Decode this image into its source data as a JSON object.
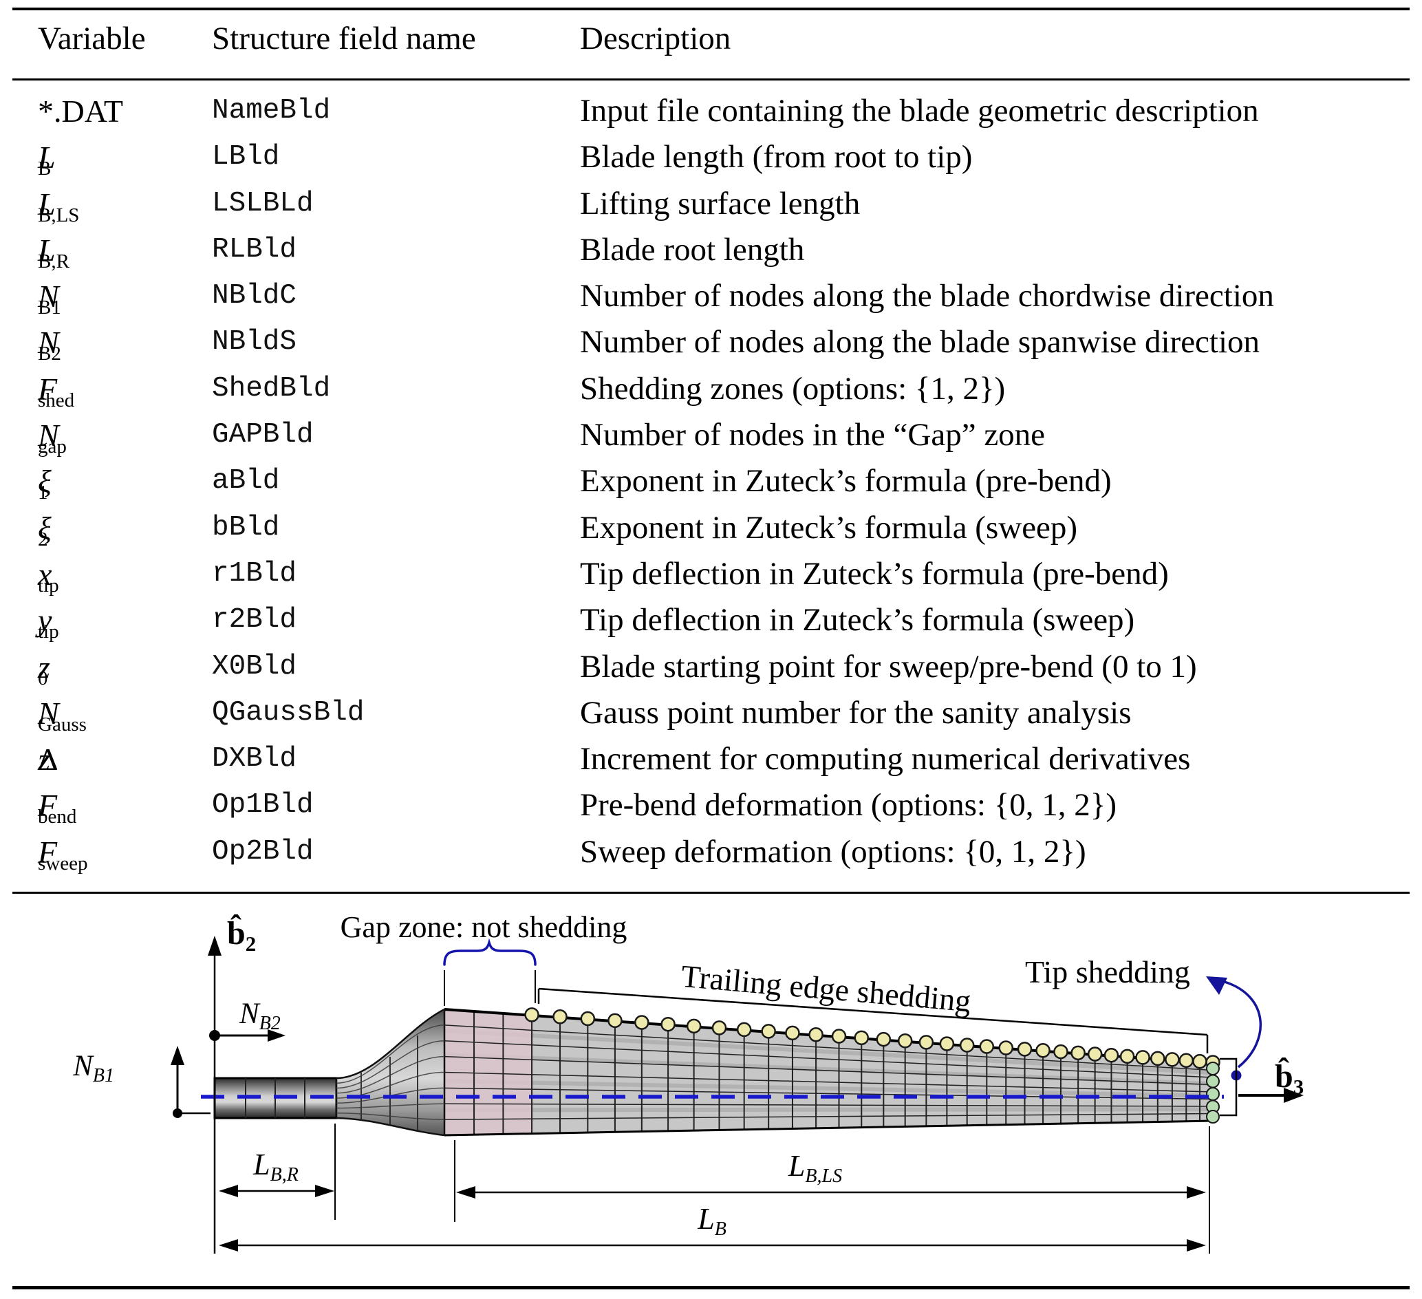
{
  "table": {
    "columns": [
      "Variable",
      "Structure field name",
      "Description"
    ],
    "rows": [
      {
        "v_pre": "*.DAT",
        "v_main": "",
        "v_sub": "",
        "field": "NameBld",
        "desc": "Input file containing the blade geometric description"
      },
      {
        "v_pre": "",
        "v_main": "L",
        "v_sub": "B",
        "field": "LBld",
        "desc": "Blade length (from root to tip)"
      },
      {
        "v_pre": "",
        "v_main": "L",
        "v_sub": "B,LS",
        "field": "LSLBLd",
        "desc": "Lifting surface length"
      },
      {
        "v_pre": "",
        "v_main": "L",
        "v_sub": "B,R",
        "field": "RLBld",
        "desc": "Blade root length"
      },
      {
        "v_pre": "",
        "v_main": "N",
        "v_sub": "B1",
        "field": "NBldC",
        "desc": "Number of nodes along the blade chordwise direction"
      },
      {
        "v_pre": "",
        "v_main": "N",
        "v_sub": "B2",
        "field": "NBldS",
        "desc": "Number of nodes along the blade spanwise direction"
      },
      {
        "v_pre": "",
        "v_main": "F",
        "v_sub": "shed",
        "field": "ShedBld",
        "desc": "Shedding zones (options: {1, 2})"
      },
      {
        "v_pre": "",
        "v_main": "N",
        "v_sub": "gap",
        "field": "GAPBld",
        "desc": "Number of nodes in the “Gap” zone"
      },
      {
        "v_pre": "",
        "v_main": "ξ",
        "v_sub": "1",
        "field": "aBld",
        "desc": "Exponent in Zuteck’s formula (pre-bend)"
      },
      {
        "v_pre": "",
        "v_main": "ξ",
        "v_sub": "2",
        "field": "bBld",
        "desc": "Exponent in Zuteck’s formula (sweep)"
      },
      {
        "v_pre": "",
        "v_main": "x",
        "v_sub": "tip",
        "field": "r1Bld",
        "desc": "Tip deflection in Zuteck’s formula (pre-bend)"
      },
      {
        "v_pre": "",
        "v_main": "y",
        "v_sub": "tip",
        "field": "r2Bld",
        "desc": "Tip deflection in Zuteck’s formula (sweep)"
      },
      {
        "v_pre": "",
        "v_main": "z",
        "v_sub": "0",
        "field": "X0Bld",
        "desc": "Blade starting point for sweep/pre-bend (0 to 1)"
      },
      {
        "v_pre": "",
        "v_main": "N",
        "v_sub": "Gauss",
        "field": "QGaussBld",
        "desc": "Gauss point number for the sanity analysis"
      },
      {
        "v_pre": "Δ",
        "v_main": "z",
        "v_sub": "",
        "field": "DXBld",
        "desc": "Increment for computing numerical derivatives"
      },
      {
        "v_pre": "",
        "v_main": "F",
        "v_sub": "bend",
        "field": "Op1Bld",
        "desc": "Pre-bend deformation (options: {0, 1, 2})"
      },
      {
        "v_pre": "",
        "v_main": "F",
        "v_sub": "sweep",
        "field": "Op2Bld",
        "desc": "Sweep deformation (options: {0, 1, 2})"
      }
    ]
  },
  "figure": {
    "gap_label": "Gap zone: not shedding",
    "trailing_label": "Trailing edge shedding",
    "tip_label": "Tip shedding",
    "axes": {
      "b2": {
        "main": "b̂",
        "sub": "2"
      },
      "b3": {
        "main": "b̂",
        "sub": "3"
      },
      "nb1": {
        "main": "N",
        "sub": "B1"
      },
      "nb2": {
        "main": "N",
        "sub": "B2"
      }
    },
    "dims": {
      "root": {
        "main": "L",
        "sub": "B,R"
      },
      "lifting": {
        "main": "L",
        "sub": "B,LS"
      },
      "total": {
        "main": "L",
        "sub": "B"
      }
    },
    "colors": {
      "gap_zone_pink": "#dcc5cd",
      "surface_gray": "#c7c7c7",
      "shedding_node_yellow": "#eee9ad",
      "tip_node_green": "#b9ddb3",
      "accent_blue": "#15159b",
      "centerline_blue": "#1a1acd"
    },
    "counts": {
      "shedding_nodes": 34,
      "tip_nodes": 5
    }
  }
}
